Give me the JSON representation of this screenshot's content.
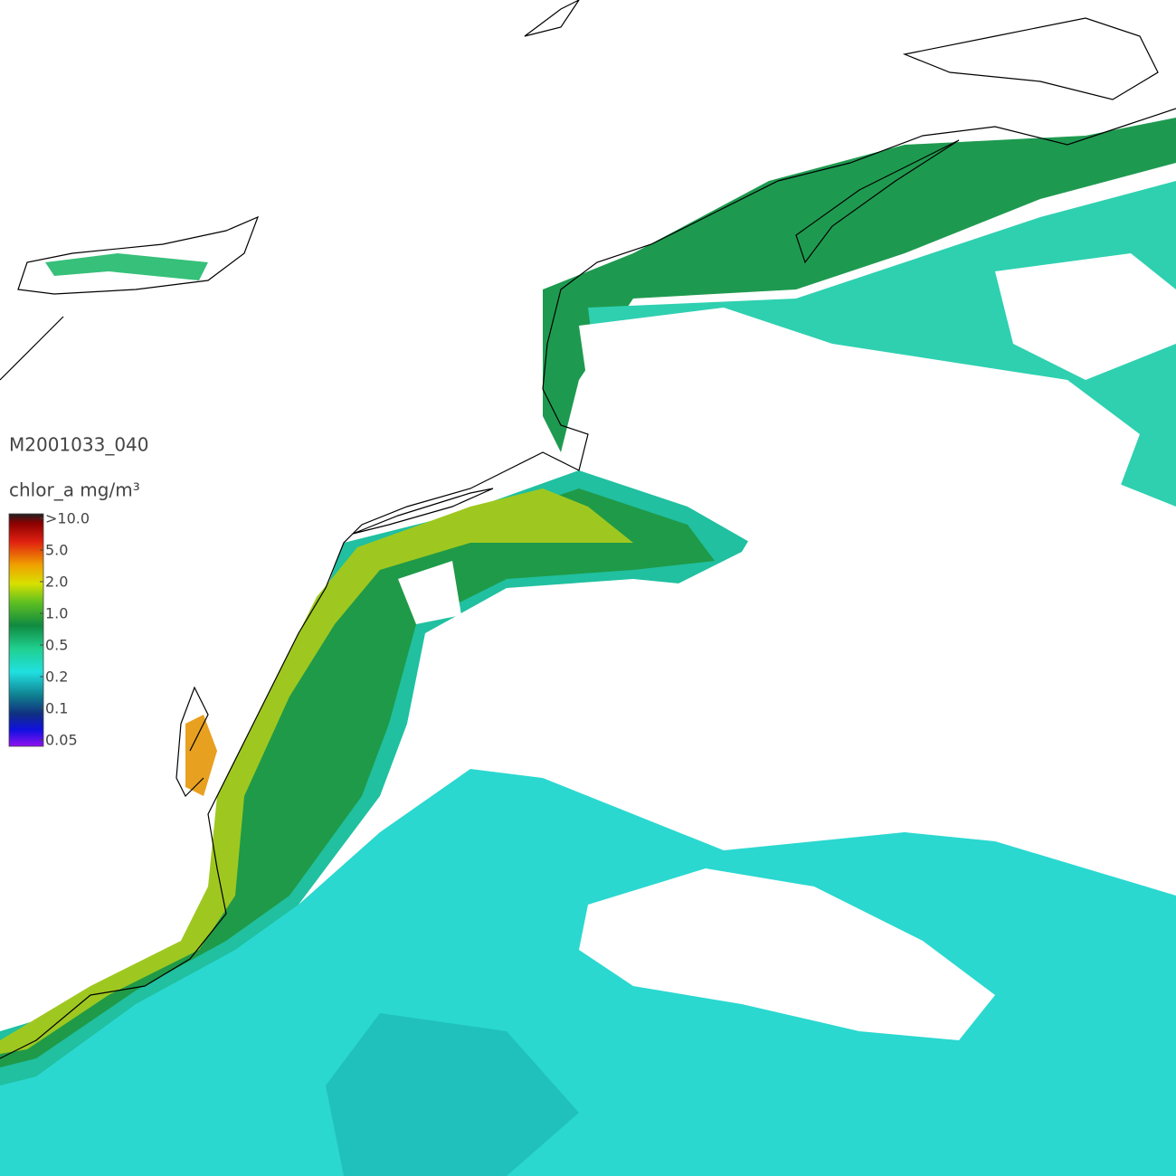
{
  "image_id": "M2001033_040",
  "legend": {
    "label": "chlor_a mg/m³",
    "ticks": [
      ">10.0",
      "5.0",
      "2.0",
      "1.0",
      "0.5",
      "0.2",
      "0.1",
      "0.05"
    ]
  }
}
